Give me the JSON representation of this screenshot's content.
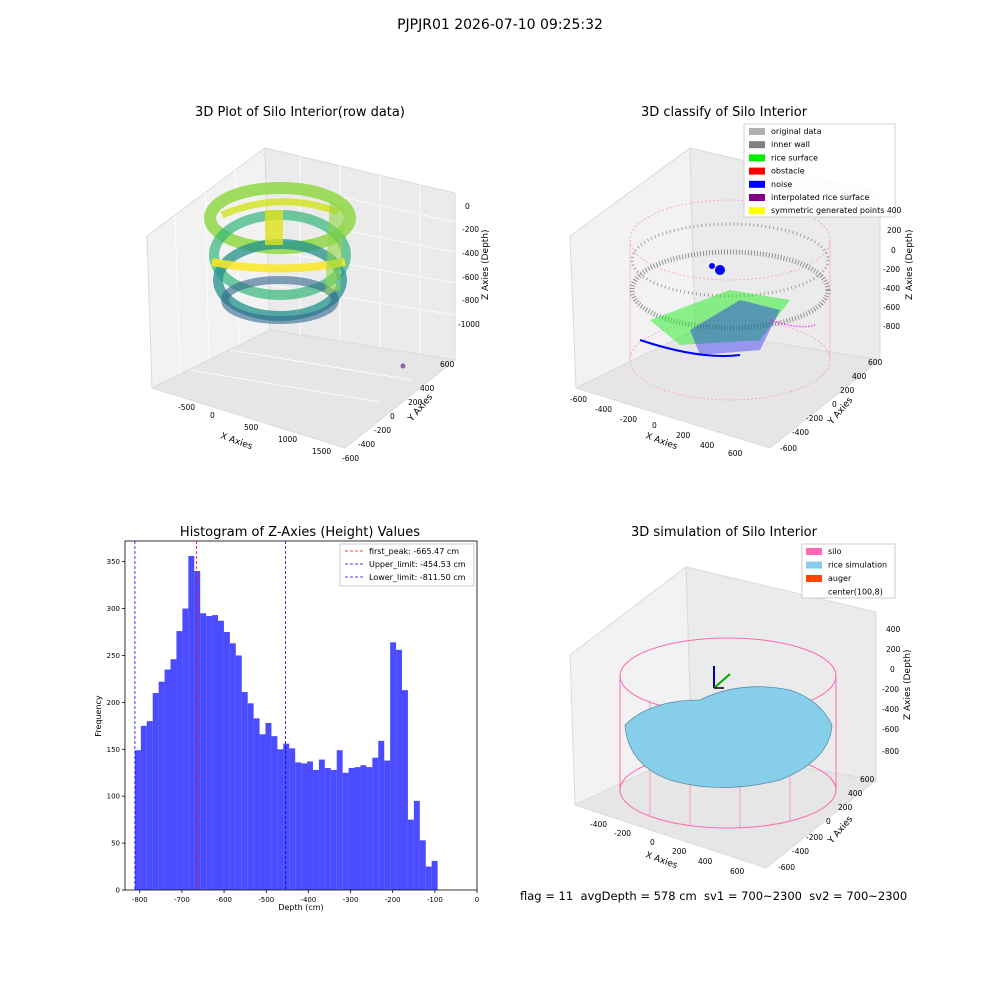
{
  "suptitle": "PJPJR01 2026-07-10 09:25:32",
  "footer_text": "flag = 11  avgDepth = 578 cm  sv1 = 700~2300  sv2 = 700~2300",
  "panels": {
    "raw": {
      "title": "3D Plot of Silo Interior(row data)",
      "xlabel": "X Axies",
      "ylabel": "Y Axies",
      "zlabel": "Z Axies (Depth)",
      "xticks": [
        "-500",
        "0",
        "500",
        "1000",
        "1500"
      ],
      "yticks": [
        "600",
        "400",
        "200",
        "0",
        "-200",
        "-400",
        "-600"
      ],
      "zticks": [
        "0",
        "-200",
        "-400",
        "-600",
        "-800",
        "-1000"
      ]
    },
    "classify": {
      "title": "3D classify of Silo Interior",
      "xlabel": "X Axies",
      "ylabel": "Y Axies",
      "zlabel": "Z Axies (Depth)",
      "xticks": [
        "-600",
        "-400",
        "-200",
        "0",
        "200",
        "400",
        "600"
      ],
      "yticks": [
        "600",
        "400",
        "200",
        "0",
        "-200",
        "-400",
        "-600"
      ],
      "zticks": [
        "400",
        "200",
        "0",
        "-200",
        "-400",
        "-600",
        "-800"
      ],
      "legend": [
        {
          "label": "original data",
          "color": "#b0b0b0"
        },
        {
          "label": "inner wall",
          "color": "#808080"
        },
        {
          "label": "rice surface",
          "color": "#00ee00"
        },
        {
          "label": "obstacle",
          "color": "#ff0000"
        },
        {
          "label": "noise",
          "color": "#0000ff"
        },
        {
          "label": "interpolated rice surface",
          "color": "#800080"
        },
        {
          "label": "symmetric generated points",
          "color": "#ffff00"
        }
      ]
    },
    "simulation": {
      "title": "3D simulation of Silo Interior",
      "xlabel": "X Axies",
      "ylabel": "Y Axies",
      "zlabel": "Z Axies (Depth)",
      "xticks": [
        "-400",
        "-200",
        "0",
        "200",
        "400",
        "600"
      ],
      "yticks": [
        "600",
        "400",
        "200",
        "0",
        "-200",
        "-400",
        "-600"
      ],
      "zticks": [
        "400",
        "200",
        "0",
        "-200",
        "-400",
        "-600",
        "-800"
      ],
      "legend": [
        {
          "label": "silo",
          "color": "#ff69b4"
        },
        {
          "label": "rice simulation",
          "color": "#87ceeb"
        },
        {
          "label": "auger",
          "color": "#ff4500"
        },
        {
          "label": "center(100,8)",
          "color": ""
        }
      ]
    }
  },
  "chart_data": [
    {
      "type": "bar",
      "title": "Histogram of Z-Axies (Height) Values",
      "xlabel": "Depth (cm)",
      "ylabel": "Frequency",
      "xlim": [
        -835,
        0
      ],
      "ylim": [
        0,
        372
      ],
      "xticks": [
        -800,
        -700,
        -600,
        -500,
        -400,
        -300,
        -200,
        -100,
        0
      ],
      "yticks": [
        0,
        50,
        100,
        150,
        200,
        250,
        300,
        350
      ],
      "bin_start": -811.5,
      "bin_width": 14.08,
      "bar_color": "#0000ff",
      "values": [
        149,
        175,
        180,
        210,
        222,
        235,
        246,
        276,
        300,
        356,
        340,
        295,
        292,
        293,
        287,
        275,
        263,
        250,
        211,
        199,
        183,
        166,
        178,
        164,
        150,
        156,
        151,
        136,
        135,
        137,
        128,
        139,
        130,
        128,
        149,
        125,
        130,
        131,
        133,
        131,
        141,
        159,
        138,
        264,
        256,
        213,
        75,
        95,
        53,
        25,
        31
      ],
      "vlines": [
        {
          "label": "first_peak: -665.47 cm",
          "x": -665.47,
          "color": "#ff0000"
        },
        {
          "label": "Upper_limit: -454.53 cm",
          "x": -454.53,
          "color": "#0000ff"
        },
        {
          "label": "Lower_limit: -811.50 cm",
          "x": -811.5,
          "color": "#0000ff"
        }
      ],
      "legend_position": "top-right"
    }
  ]
}
